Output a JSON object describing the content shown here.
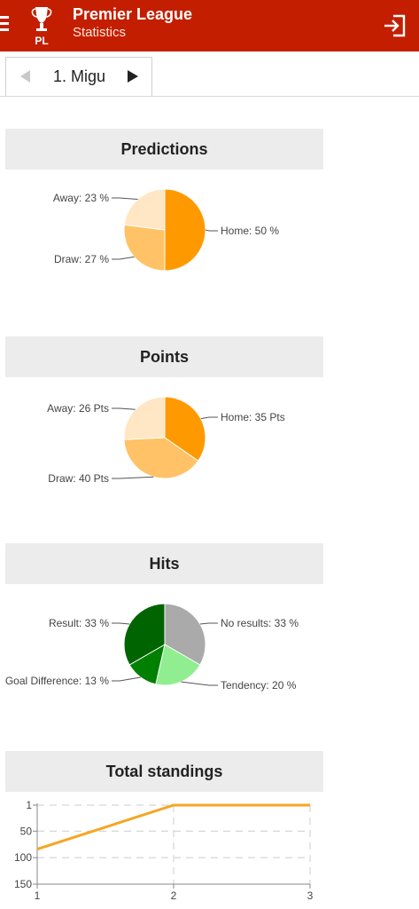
{
  "app": {
    "title": "Premier League",
    "subtitle": "Statistics",
    "logo_text": "PL"
  },
  "tab": {
    "label": "1. Migu"
  },
  "icons": {
    "menu": "menu-icon",
    "logo": "trophy-icon",
    "login": "login-icon",
    "prev": "triangle-left-icon",
    "next": "triangle-right-icon"
  },
  "colors": {
    "appbar": "#c41e00",
    "home": "#ff9900",
    "draw": "#ffc266",
    "away": "#ffe6c4",
    "no_results": "#aaaaaa",
    "tendency": "#90ee90",
    "goal_difference": "#008000",
    "result": "#006400",
    "standings_line": "#f5a623"
  },
  "sections": {
    "predictions": "Predictions",
    "points": "Points",
    "hits": "Hits",
    "standings": "Total standings"
  },
  "chart_data": [
    {
      "type": "pie",
      "title": "Predictions",
      "slices": [
        {
          "label": "Home: 50 %",
          "value": 50
        },
        {
          "label": "Draw: 27 %",
          "value": 27
        },
        {
          "label": "Away: 23 %",
          "value": 23
        }
      ]
    },
    {
      "type": "pie",
      "title": "Points",
      "slices": [
        {
          "label": "Home: 35 Pts",
          "value": 35
        },
        {
          "label": "Draw: 40 Pts",
          "value": 40
        },
        {
          "label": "Away: 26 Pts",
          "value": 26
        }
      ]
    },
    {
      "type": "pie",
      "title": "Hits",
      "slices": [
        {
          "label": "No results: 33 %",
          "value": 33
        },
        {
          "label": "Tendency: 20 %",
          "value": 20
        },
        {
          "label": "Goal Difference: 13 %",
          "value": 13
        },
        {
          "label": "Result: 33 %",
          "value": 33
        }
      ]
    },
    {
      "type": "line",
      "title": "Total standings",
      "x": [
        1,
        2,
        3
      ],
      "x_ticks": [
        "1",
        "2",
        "3"
      ],
      "y": [
        84,
        1,
        1
      ],
      "y_ticks": [
        "1",
        "50",
        "100",
        "150"
      ],
      "ylim": [
        1,
        150
      ],
      "y_reversed": true,
      "grid": true
    }
  ]
}
